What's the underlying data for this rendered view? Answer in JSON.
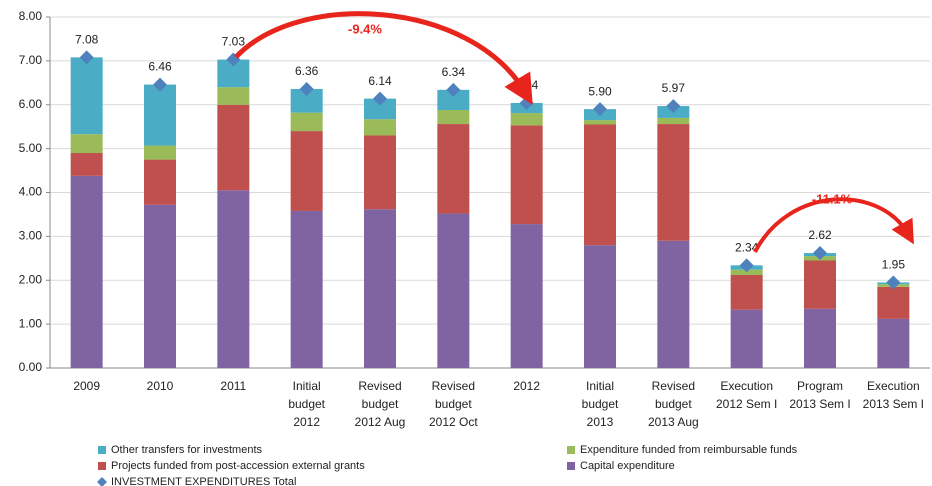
{
  "chart_data": {
    "type": "stacked-bar",
    "categories": [
      [
        "2009"
      ],
      [
        "2010"
      ],
      [
        "2011"
      ],
      [
        "Initial",
        "budget",
        "2012"
      ],
      [
        "Revised",
        "budget",
        "2012 Aug"
      ],
      [
        "Revised",
        "budget",
        "2012 Oct"
      ],
      [
        "2012"
      ],
      [
        "Initial",
        "budget",
        "2013"
      ],
      [
        "Revised",
        "budget",
        "2013 Aug"
      ],
      [
        "Execution",
        "2012 Sem I"
      ],
      [
        "Program",
        "2013 Sem I"
      ],
      [
        "Execution",
        "2013 Sem I"
      ]
    ],
    "series": [
      {
        "name": "Other transfers for investments",
        "color": "#4bacc6",
        "values": [
          1.75,
          1.39,
          0.63,
          0.54,
          0.47,
          0.46,
          0.23,
          0.25,
          0.27,
          0.1,
          0.07,
          0.04
        ]
      },
      {
        "name": "Expenditure funded from reimbursable funds",
        "color": "#9bbb59",
        "values": [
          0.43,
          0.32,
          0.4,
          0.42,
          0.37,
          0.32,
          0.28,
          0.1,
          0.14,
          0.12,
          0.1,
          0.06
        ]
      },
      {
        "name": "Projects funded from post-accession external grants",
        "color": "#c0504d",
        "values": [
          0.52,
          1.03,
          1.95,
          1.82,
          1.68,
          2.04,
          2.25,
          2.75,
          2.66,
          0.79,
          1.1,
          0.73
        ]
      },
      {
        "name": "Capital expenditure",
        "color": "#8064a2",
        "values": [
          4.38,
          3.72,
          4.05,
          3.58,
          3.62,
          3.52,
          3.28,
          2.8,
          2.9,
          1.33,
          1.35,
          1.12
        ]
      }
    ],
    "total": {
      "name": "INVESTMENT EXPENDITURES Total",
      "color": "#4f81bd",
      "values": [
        7.08,
        6.46,
        7.03,
        6.36,
        6.14,
        6.34,
        6.04,
        5.9,
        5.97,
        2.34,
        2.62,
        1.95
      ],
      "value_labels": [
        "7.08",
        "6.46",
        "7.03",
        "6.36",
        "6.14",
        "6.34",
        "6.04",
        "5.90",
        "5.97",
        "2.34",
        "2.62",
        "1.95"
      ]
    },
    "ylim": [
      0,
      8
    ],
    "yticks": [
      {
        "value": 0,
        "label": "0.00"
      },
      {
        "value": 1,
        "label": "1.00"
      },
      {
        "value": 2,
        "label": "2.00"
      },
      {
        "value": 3,
        "label": "3.00"
      },
      {
        "value": 4,
        "label": "4.00"
      },
      {
        "value": 5,
        "label": "5.00"
      },
      {
        "value": 6,
        "label": "6.00"
      },
      {
        "value": 7,
        "label": "7.00"
      },
      {
        "value": 8,
        "label": "8.00"
      }
    ],
    "grid": true,
    "annotations": [
      "-9.4%",
      "-11.1%"
    ]
  }
}
